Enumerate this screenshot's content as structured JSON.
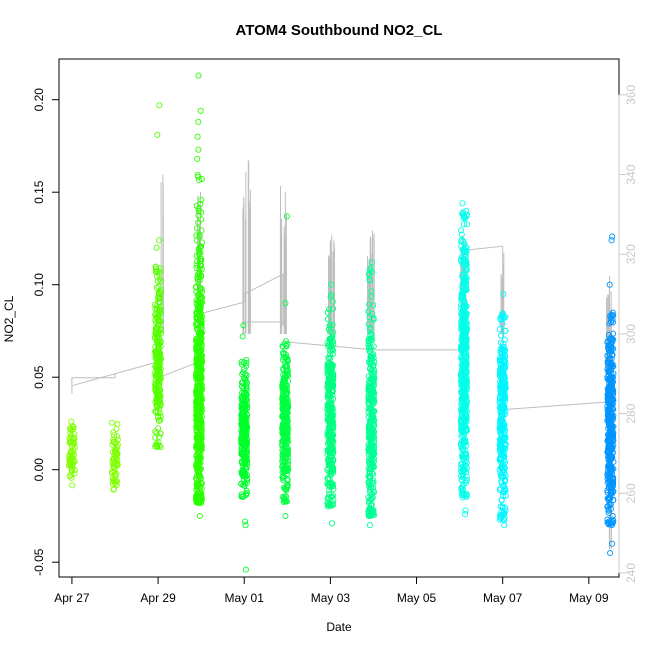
{
  "chart_data": {
    "type": "scatter",
    "title": "ATOM4 Southbound NO2_CL",
    "xlabel": "Date",
    "ylabel": "NO2_CL",
    "x_is_date_days_since_apr27": true,
    "xlim": [
      -0.3,
      12.7
    ],
    "ylim": [
      -0.058,
      0.222
    ],
    "y2lim": [
      239,
      369
    ],
    "x_ticks": [
      {
        "value": 0,
        "label": "Apr 27"
      },
      {
        "value": 2,
        "label": "Apr 29"
      },
      {
        "value": 4,
        "label": "May 01"
      },
      {
        "value": 6,
        "label": "May 03"
      },
      {
        "value": 8,
        "label": "May 05"
      },
      {
        "value": 10,
        "label": "May 07"
      },
      {
        "value": 12,
        "label": "May 09"
      }
    ],
    "y_ticks": [
      {
        "value": -0.05,
        "label": "-0.05"
      },
      {
        "value": 0.0,
        "label": "0.00"
      },
      {
        "value": 0.05,
        "label": "0.05"
      },
      {
        "value": 0.1,
        "label": "0.10"
      },
      {
        "value": 0.15,
        "label": "0.15"
      },
      {
        "value": 0.2,
        "label": "0.20"
      }
    ],
    "y2_ticks": [
      {
        "value": 240,
        "label": "240"
      },
      {
        "value": 260,
        "label": "260"
      },
      {
        "value": 280,
        "label": "280"
      },
      {
        "value": 300,
        "label": "300"
      },
      {
        "value": 320,
        "label": "320"
      },
      {
        "value": 340,
        "label": "340"
      },
      {
        "value": 360,
        "label": "360"
      }
    ],
    "point_clusters": [
      {
        "x": 0.0,
        "ymin": -0.012,
        "ymax": 0.027,
        "center": 0.008,
        "color": "#7FFF00",
        "n": 60,
        "outliers": []
      },
      {
        "x": 1.0,
        "ymin": -0.012,
        "ymax": 0.026,
        "center": 0.005,
        "color": "#7FFF00",
        "n": 60,
        "outliers": []
      },
      {
        "x": 2.0,
        "ymin": 0.012,
        "ymax": 0.11,
        "center": 0.06,
        "color": "#55FF00",
        "n": 240,
        "outliers": [
          0.197,
          0.181,
          0.124,
          0.12
        ]
      },
      {
        "x": 2.95,
        "ymin": -0.018,
        "ymax": 0.16,
        "center": 0.04,
        "color": "#2AFF00",
        "n": 600,
        "outliers": [
          0.213,
          0.194,
          0.188,
          0.18,
          -0.025,
          0.173,
          0.168
        ]
      },
      {
        "x": 4.0,
        "ymin": -0.015,
        "ymax": 0.06,
        "center": 0.02,
        "color": "#00FF2A",
        "n": 260,
        "outliers": [
          -0.054,
          -0.03,
          -0.028,
          0.078,
          0.072
        ]
      },
      {
        "x": 4.95,
        "ymin": -0.018,
        "ymax": 0.07,
        "center": 0.025,
        "color": "#00FF40",
        "n": 300,
        "outliers": [
          0.137,
          0.09,
          -0.025
        ]
      },
      {
        "x": 6.0,
        "ymin": -0.02,
        "ymax": 0.095,
        "center": 0.025,
        "color": "#00FF80",
        "n": 340,
        "outliers": [
          -0.029,
          0.1
        ]
      },
      {
        "x": 6.95,
        "ymin": -0.025,
        "ymax": 0.11,
        "center": 0.025,
        "color": "#00FF95",
        "n": 340,
        "outliers": [
          -0.03,
          0.112
        ]
      },
      {
        "x": 9.1,
        "ymin": -0.015,
        "ymax": 0.14,
        "center": 0.055,
        "color": "#00FFEA",
        "n": 500,
        "outliers": [
          0.144,
          -0.022,
          -0.024
        ]
      },
      {
        "x": 10.0,
        "ymin": -0.028,
        "ymax": 0.085,
        "center": 0.03,
        "color": "#00F5FF",
        "n": 320,
        "outliers": [
          -0.03,
          0.095
        ]
      },
      {
        "x": 12.5,
        "ymin": -0.03,
        "ymax": 0.085,
        "center": 0.025,
        "color": "#0095FF",
        "n": 420,
        "outliers": [
          0.126,
          0.124,
          0.1,
          -0.045,
          -0.04
        ]
      }
    ],
    "secondary_line": {
      "color": "#bebebe",
      "segments": [
        [
          [
            0.0,
            285
          ],
          [
            0.0,
            289
          ],
          [
            1.0,
            289
          ],
          [
            1.0,
            290
          ]
        ],
        [
          [
            0.0,
            287
          ],
          [
            2.0,
            293
          ],
          [
            2.0,
            289
          ],
          [
            2.95,
            293
          ],
          [
            2.95,
            305
          ],
          [
            4.0,
            308
          ],
          [
            4.0,
            310
          ],
          [
            4.9,
            315
          ],
          [
            4.9,
            302
          ]
        ],
        [
          [
            4.0,
            303
          ],
          [
            4.95,
            303
          ]
        ],
        [
          [
            4.95,
            298
          ],
          [
            6.0,
            297
          ],
          [
            7.0,
            296
          ],
          [
            9.1,
            296
          ],
          [
            9.1,
            321
          ],
          [
            10.0,
            322
          ],
          [
            10.0,
            281
          ],
          [
            12.5,
            283
          ]
        ]
      ],
      "spikes": [
        {
          "x": 2.1,
          "lo": 300,
          "hi": 340
        },
        {
          "x": 2.95,
          "lo": 300,
          "hi": 338
        },
        {
          "x": 4.0,
          "lo": 300,
          "hi": 343
        },
        {
          "x": 4.1,
          "lo": 300,
          "hi": 346
        },
        {
          "x": 4.85,
          "lo": 300,
          "hi": 338
        },
        {
          "x": 4.95,
          "lo": 300,
          "hi": 338
        },
        {
          "x": 6.0,
          "lo": 300,
          "hi": 324
        },
        {
          "x": 6.05,
          "lo": 300,
          "hi": 327
        },
        {
          "x": 6.9,
          "lo": 300,
          "hi": 320
        },
        {
          "x": 6.95,
          "lo": 300,
          "hi": 326
        },
        {
          "x": 7.0,
          "lo": 300,
          "hi": 326
        },
        {
          "x": 9.05,
          "lo": 300,
          "hi": 325
        },
        {
          "x": 9.1,
          "lo": 300,
          "hi": 326
        },
        {
          "x": 10.0,
          "lo": 300,
          "hi": 323
        },
        {
          "x": 12.45,
          "lo": 290,
          "hi": 310
        },
        {
          "x": 12.5,
          "lo": 246,
          "hi": 320
        }
      ]
    }
  }
}
